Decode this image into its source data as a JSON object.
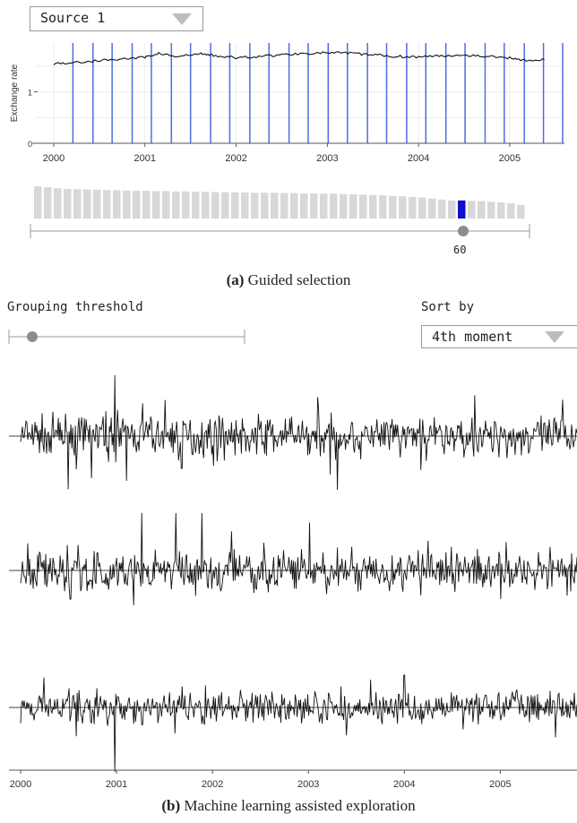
{
  "source_select": {
    "value": "Source 1"
  },
  "caption_a": {
    "label": "(a)",
    "text": "Guided selection"
  },
  "caption_b": {
    "label": "(b)",
    "text": "Machine learning assisted exploration"
  },
  "grouping": {
    "label": "Grouping threshold",
    "value_fraction": 0.1
  },
  "sort": {
    "label": "Sort by",
    "value": "4th moment"
  },
  "window_slider": {
    "value": "60"
  },
  "colors": {
    "selection": "#4a6fe0",
    "highlight": "#1010d0",
    "bar": "#d8d8d8",
    "line": "#111111"
  },
  "chart_data": [
    {
      "type": "line",
      "title": "",
      "ylabel": "Exchange rate",
      "xlabel": "",
      "x_ticks": [
        "2000",
        "2001",
        "2002",
        "2003",
        "2004",
        "2005"
      ],
      "y_ticks": [
        "0",
        "1"
      ],
      "xlim": [
        2000,
        2005.6
      ],
      "ylim": [
        0,
        1.95
      ],
      "series": [
        {
          "x": [
            2000.0,
            2000.25,
            2000.5,
            2000.75,
            2001.0,
            2001.15,
            2001.35,
            2001.6,
            2001.75,
            2002.0,
            2002.25,
            2002.5,
            2002.75,
            2003.0,
            2003.25,
            2003.5,
            2003.75,
            2004.0,
            2004.25,
            2004.5,
            2004.75,
            2005.0,
            2005.2,
            2005.4
          ],
          "y": [
            1.55,
            1.57,
            1.61,
            1.64,
            1.67,
            1.75,
            1.68,
            1.74,
            1.71,
            1.66,
            1.69,
            1.72,
            1.75,
            1.76,
            1.75,
            1.72,
            1.69,
            1.68,
            1.7,
            1.72,
            1.69,
            1.66,
            1.61,
            1.62
          ]
        }
      ],
      "selection_lines_x": [
        2000.21,
        2000.43,
        2000.64,
        2000.86,
        2001.07,
        2001.29,
        2001.5,
        2001.72,
        2001.93,
        2002.15,
        2002.36,
        2002.58,
        2002.79,
        2003.01,
        2003.22,
        2003.44,
        2003.65,
        2003.87,
        2004.08,
        2004.3,
        2004.51,
        2004.73,
        2004.94,
        2005.16,
        2005.37,
        2005.58
      ]
    },
    {
      "type": "bar",
      "title": "",
      "description": "window-size histogram",
      "values": [
        1.0,
        0.97,
        0.94,
        0.92,
        0.91,
        0.9,
        0.89,
        0.88,
        0.88,
        0.87,
        0.86,
        0.86,
        0.85,
        0.85,
        0.84,
        0.84,
        0.83,
        0.83,
        0.82,
        0.82,
        0.81,
        0.81,
        0.8,
        0.8,
        0.8,
        0.79,
        0.79,
        0.78,
        0.78,
        0.77,
        0.77,
        0.76,
        0.75,
        0.74,
        0.73,
        0.72,
        0.7,
        0.69,
        0.67,
        0.65,
        0.62,
        0.59,
        0.56,
        0.56,
        0.55,
        0.54,
        0.52,
        0.5,
        0.47,
        0.42
      ],
      "highlight_index": 43
    },
    {
      "type": "line",
      "title": "",
      "description": "three sorted return series",
      "x_ticks": [
        "2000",
        "2001",
        "2002",
        "2003",
        "2004",
        "2005"
      ],
      "xlim": [
        2000,
        2005.8
      ],
      "series": [
        {
          "seed": 7,
          "amplitude": 1.0,
          "spikes": [
            [
              2000.98,
              1.7
            ],
            [
              2003.3,
              -1.5
            ],
            [
              2001.68,
              -0.9
            ]
          ]
        },
        {
          "seed": 19,
          "amplitude": 1.0,
          "spikes": [
            [
              2001.62,
              1.6
            ],
            [
              2000.52,
              -0.8
            ]
          ]
        },
        {
          "seed": 31,
          "amplitude": 0.8,
          "spikes": [
            [
              2000.98,
              -1.8
            ],
            [
              2004.0,
              0.9
            ]
          ]
        }
      ]
    }
  ]
}
